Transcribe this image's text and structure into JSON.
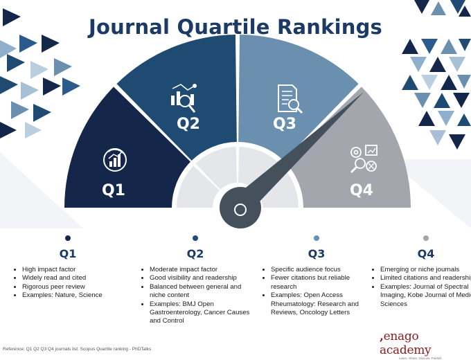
{
  "title": "Journal Quartile Rankings",
  "colors": {
    "q1": "#14274a",
    "q2": "#1f4b73",
    "q3": "#6b8fae",
    "q4": "#a3a6ac",
    "needle": "#45505d",
    "title": "#1b3a66",
    "brand": "#8b1a1f"
  },
  "gauge": {
    "segments": [
      {
        "label": "Q1",
        "icon": "target-chart-icon"
      },
      {
        "label": "Q2",
        "icon": "analytics-magnifier-icon"
      },
      {
        "label": "Q3",
        "icon": "document-search-icon"
      },
      {
        "label": "Q4",
        "icon": "gears-search-icon"
      }
    ]
  },
  "columns": [
    {
      "heading": "Q1",
      "items": [
        "High impact factor",
        "Widely read and cited",
        "Rigorous peer review",
        "Examples: Nature, Science"
      ]
    },
    {
      "heading": "Q2",
      "items": [
        "Moderate impact factor",
        "Good visibility and readership",
        "Balanced between general and niche content",
        "Examples: BMJ Open Gastroenterology, Cancer Causes and Control"
      ]
    },
    {
      "heading": "Q3",
      "items": [
        "Specific audience focus",
        "Fewer citations but reliable research",
        "Examples: Open Access Rheumatology: Research and Reviews, Oncology Letters"
      ]
    },
    {
      "heading": "Q4",
      "items": [
        "Emerging or niche journals",
        "Limited citations and readership",
        "Examples: Journal of Spectral Imaging, Kobe Journal of Medical Sciences"
      ]
    }
  ],
  "reference": "Reference: Q1 Q2 Q3 Q4 journals list: Scopus Quartile ranking - PhDTalks",
  "brand": {
    "name": "enago academy",
    "tagline": "Learn. Share. Discuss. Publish"
  }
}
